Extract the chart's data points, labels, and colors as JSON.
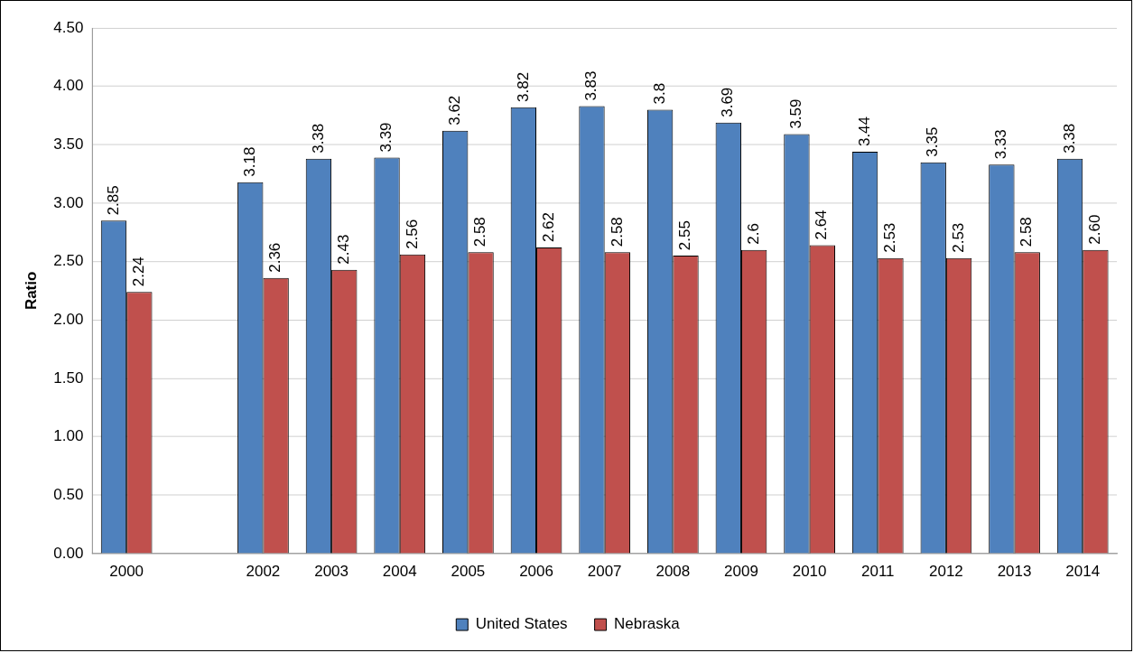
{
  "chart_data": {
    "type": "bar",
    "ylabel": "Ratio",
    "categories": [
      "2000",
      null,
      "2002",
      "2003",
      "2004",
      "2005",
      "2006",
      "2007",
      "2008",
      "2009",
      "2010",
      "2011",
      "2012",
      "2013",
      "2014"
    ],
    "series": [
      {
        "name": "United States",
        "color": "#4f81bd",
        "values": [
          2.85,
          null,
          3.18,
          3.38,
          3.39,
          3.62,
          3.82,
          3.83,
          3.8,
          3.69,
          3.59,
          3.44,
          3.35,
          3.33,
          3.38
        ],
        "value_labels": [
          "2.85",
          null,
          "3.18",
          "3.38",
          "3.39",
          "3.62",
          "3.82",
          "3.83",
          "3.8",
          "3.69",
          "3.59",
          "3.44",
          "3.35",
          "3.33",
          "3.38"
        ]
      },
      {
        "name": "Nebraska",
        "color": "#c0504d",
        "values": [
          2.24,
          null,
          2.36,
          2.43,
          2.56,
          2.58,
          2.62,
          2.58,
          2.55,
          2.6,
          2.64,
          2.53,
          2.53,
          2.58,
          2.6
        ],
        "value_labels": [
          "2.24",
          null,
          "2.36",
          "2.43",
          "2.56",
          "2.58",
          "2.62",
          "2.58",
          "2.55",
          "2.6",
          "2.64",
          "2.53",
          "2.53",
          "2.58",
          "2.60"
        ]
      }
    ],
    "ylim": [
      0,
      4.5
    ],
    "yticks": [
      {
        "value": 0,
        "label": "0.00"
      },
      {
        "value": 0.5,
        "label": "0.50"
      },
      {
        "value": 1,
        "label": "1.00"
      },
      {
        "value": 1.5,
        "label": "1.50"
      },
      {
        "value": 2,
        "label": "2.00"
      },
      {
        "value": 2.5,
        "label": "2.50"
      },
      {
        "value": 3,
        "label": "3.00"
      },
      {
        "value": 3.5,
        "label": "3.50"
      },
      {
        "value": 4,
        "label": "4.00"
      },
      {
        "value": 4.5,
        "label": "4.50"
      }
    ],
    "grid": "y",
    "legend": "bottom"
  }
}
